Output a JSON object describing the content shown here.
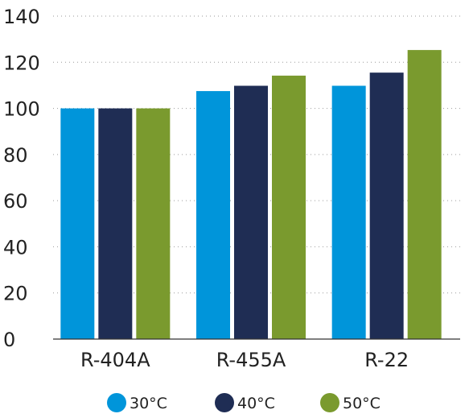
{
  "chart_data": {
    "type": "bar",
    "title": "",
    "xlabel": "",
    "ylabel": "",
    "categories": [
      "R-404A",
      "R-455A",
      "R-22"
    ],
    "series": [
      {
        "name": "30°C",
        "color": "#0095DA",
        "values": [
          100,
          107.5,
          109.8
        ]
      },
      {
        "name": "40°C",
        "color": "#1F2D54",
        "values": [
          100,
          109.8,
          115.5
        ]
      },
      {
        "name": "50°C",
        "color": "#7A9A2E",
        "values": [
          100,
          114.2,
          125.3
        ]
      }
    ],
    "ylim": [
      0,
      140
    ],
    "yticks": [
      "0",
      "20",
      "40",
      "60",
      "80",
      "100",
      "120",
      "140"
    ],
    "grid": true,
    "legend_position": "bottom"
  }
}
